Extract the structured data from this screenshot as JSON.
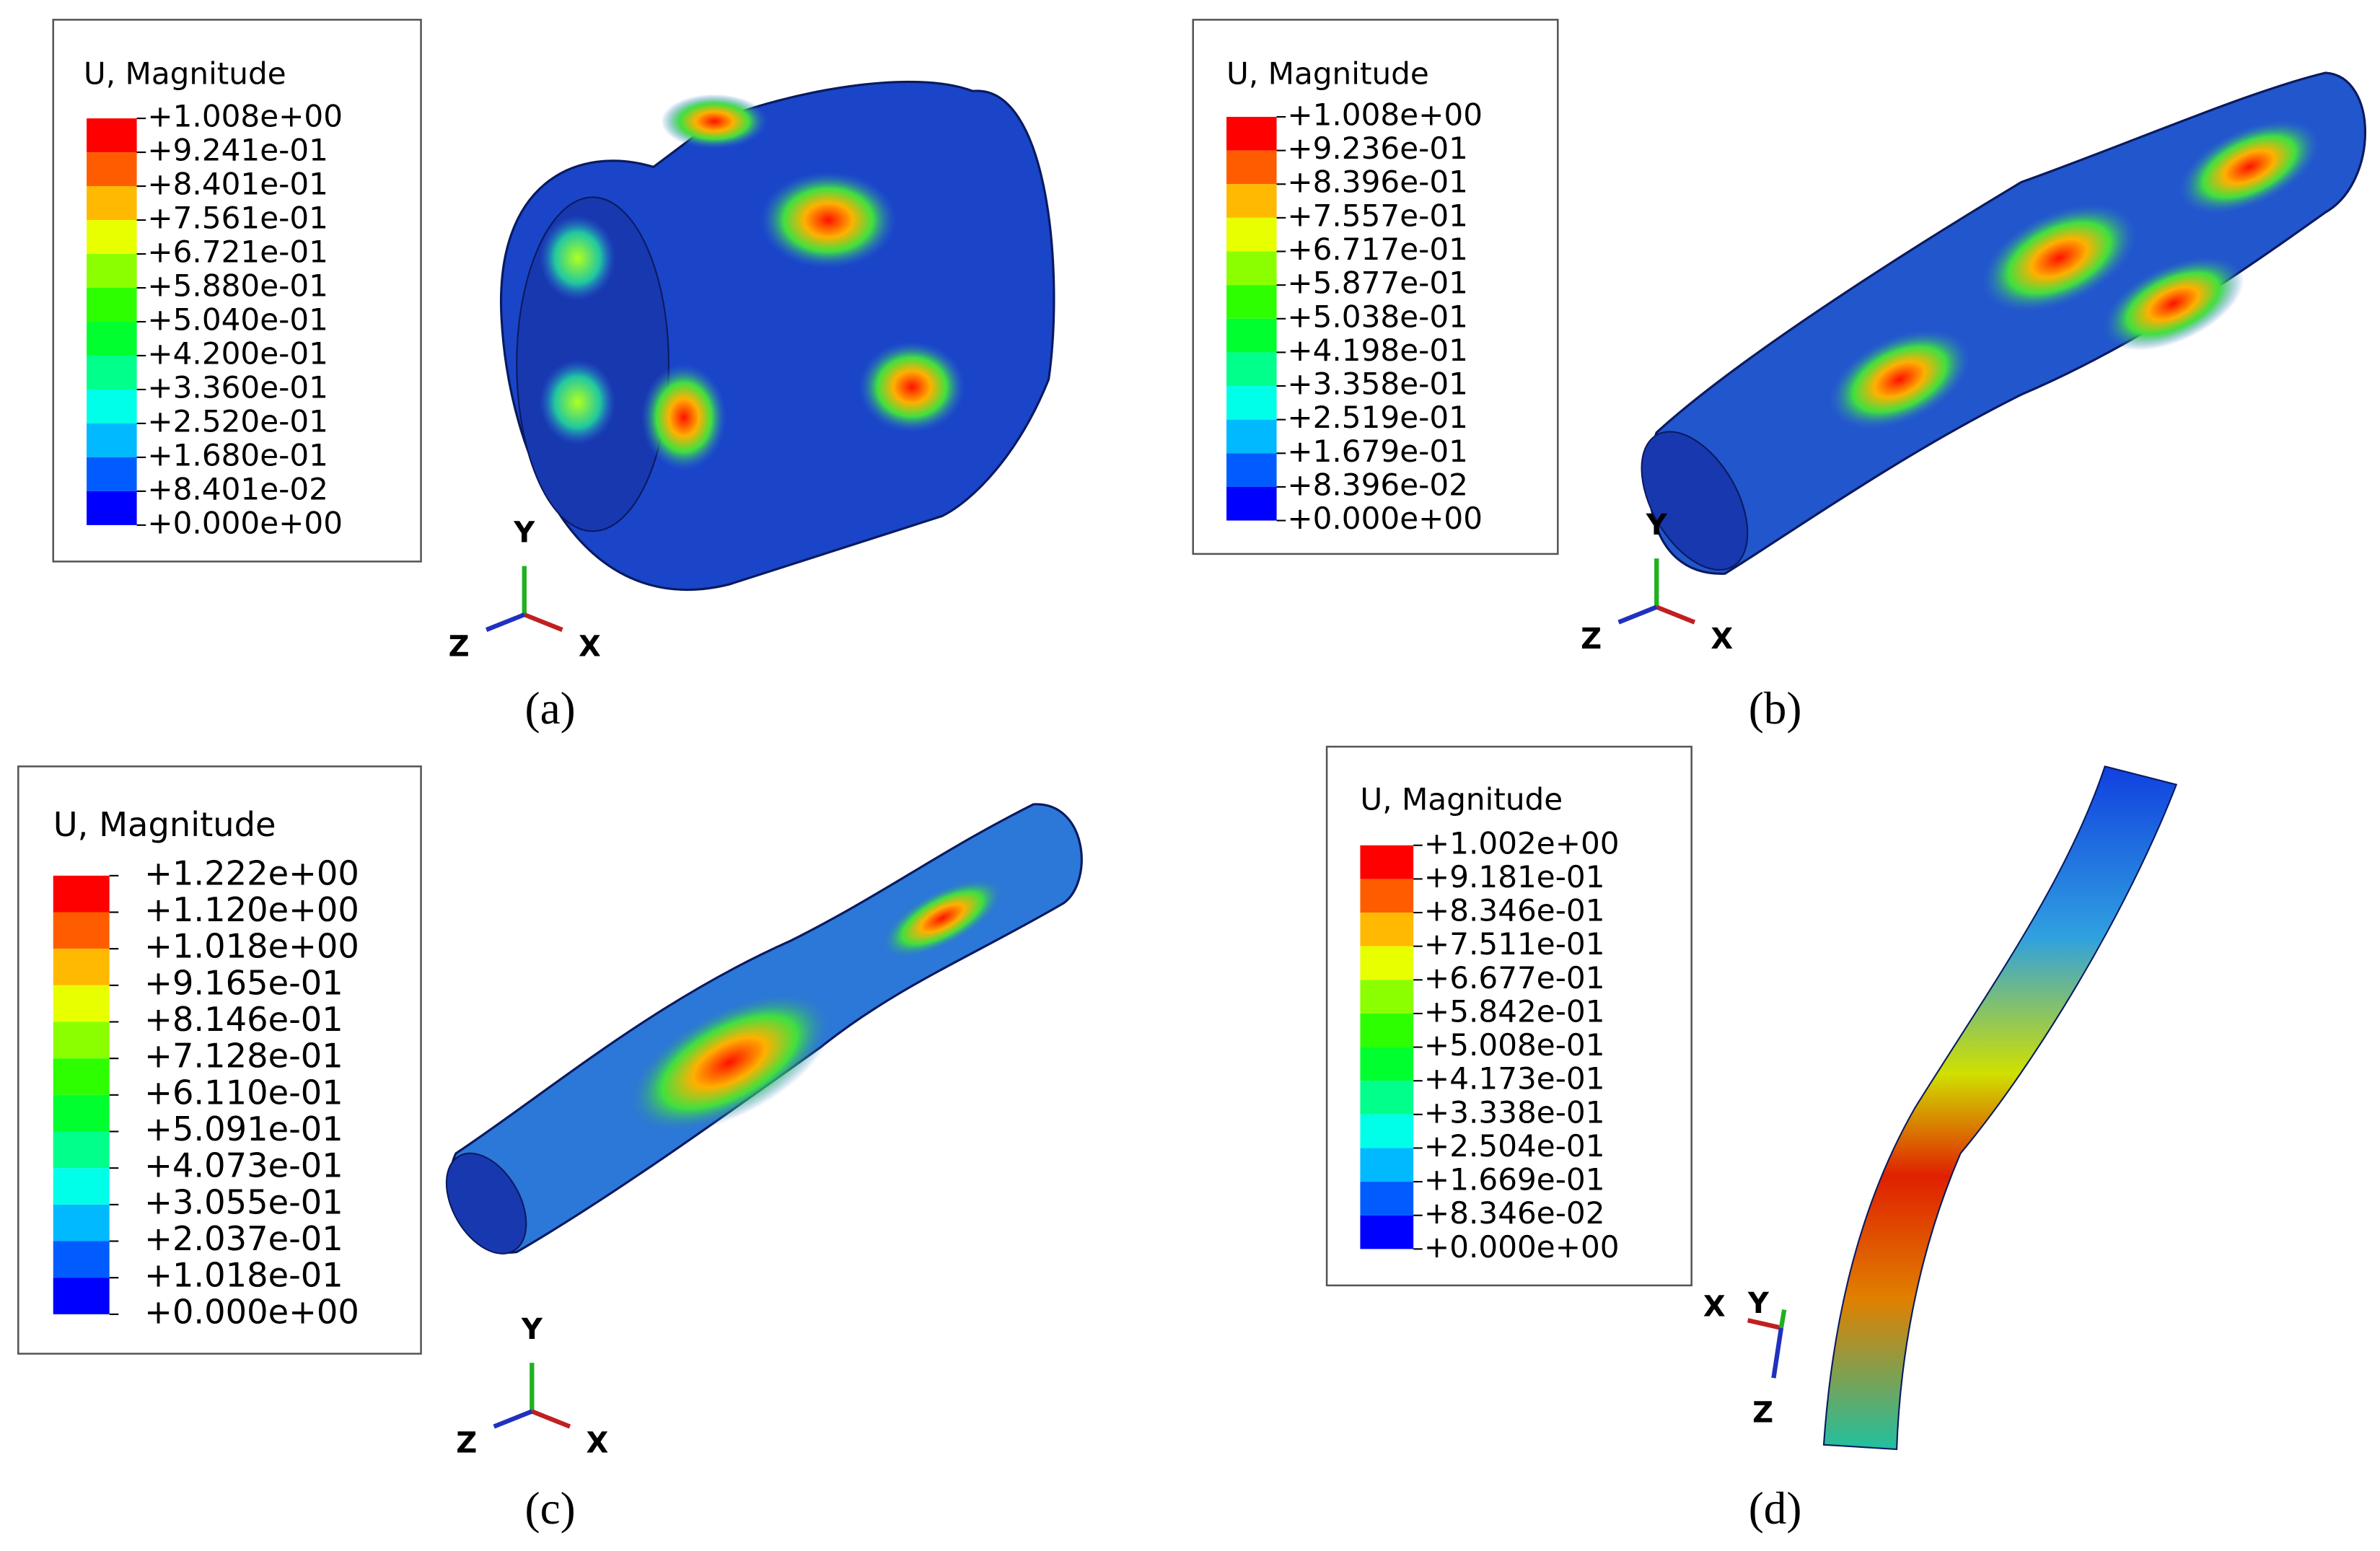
{
  "panels": [
    {
      "legend": {
        "title": "U, Magnitude",
        "labels": [
          "+1.008e+00",
          "+9.241e-01",
          "+8.401e-01",
          "+7.561e-01",
          "+6.721e-01",
          "+5.880e-01",
          "+5.040e-01",
          "+4.200e-01",
          "+3.360e-01",
          "+2.520e-01",
          "+1.680e-01",
          "+8.401e-02",
          "+0.000e+00"
        ]
      },
      "axes": {
        "y": "Y",
        "z": "Z",
        "x": "X"
      },
      "caption": "(a)"
    },
    {
      "legend": {
        "title": "U, Magnitude",
        "labels": [
          "+1.008e+00",
          "+9.236e-01",
          "+8.396e-01",
          "+7.557e-01",
          "+6.717e-01",
          "+5.877e-01",
          "+5.038e-01",
          "+4.198e-01",
          "+3.358e-01",
          "+2.519e-01",
          "+1.679e-01",
          "+8.396e-02",
          "+0.000e+00"
        ]
      },
      "axes": {
        "y": "Y",
        "z": "Z",
        "x": "X"
      },
      "caption": "(b)"
    },
    {
      "legend": {
        "title": "U, Magnitude",
        "labels": [
          "+1.222e+00",
          "+1.120e+00",
          "+1.018e+00",
          "+9.165e-01",
          "+8.146e-01",
          "+7.128e-01",
          "+6.110e-01",
          "+5.091e-01",
          "+4.073e-01",
          "+3.055e-01",
          "+2.037e-01",
          "+1.018e-01",
          "+0.000e+00"
        ]
      },
      "axes": {
        "y": "Y",
        "z": "Z",
        "x": "X"
      },
      "caption": "(c)"
    },
    {
      "legend": {
        "title": "U, Magnitude",
        "labels": [
          "+1.002e+00",
          "+9.181e-01",
          "+8.346e-01",
          "+7.511e-01",
          "+6.677e-01",
          "+5.842e-01",
          "+5.008e-01",
          "+4.173e-01",
          "+3.338e-01",
          "+2.504e-01",
          "+1.669e-01",
          "+8.346e-02",
          "+0.000e+00"
        ]
      },
      "axes": {
        "x": "X",
        "y": "Y",
        "z": "Z"
      },
      "caption": "(d)"
    }
  ]
}
